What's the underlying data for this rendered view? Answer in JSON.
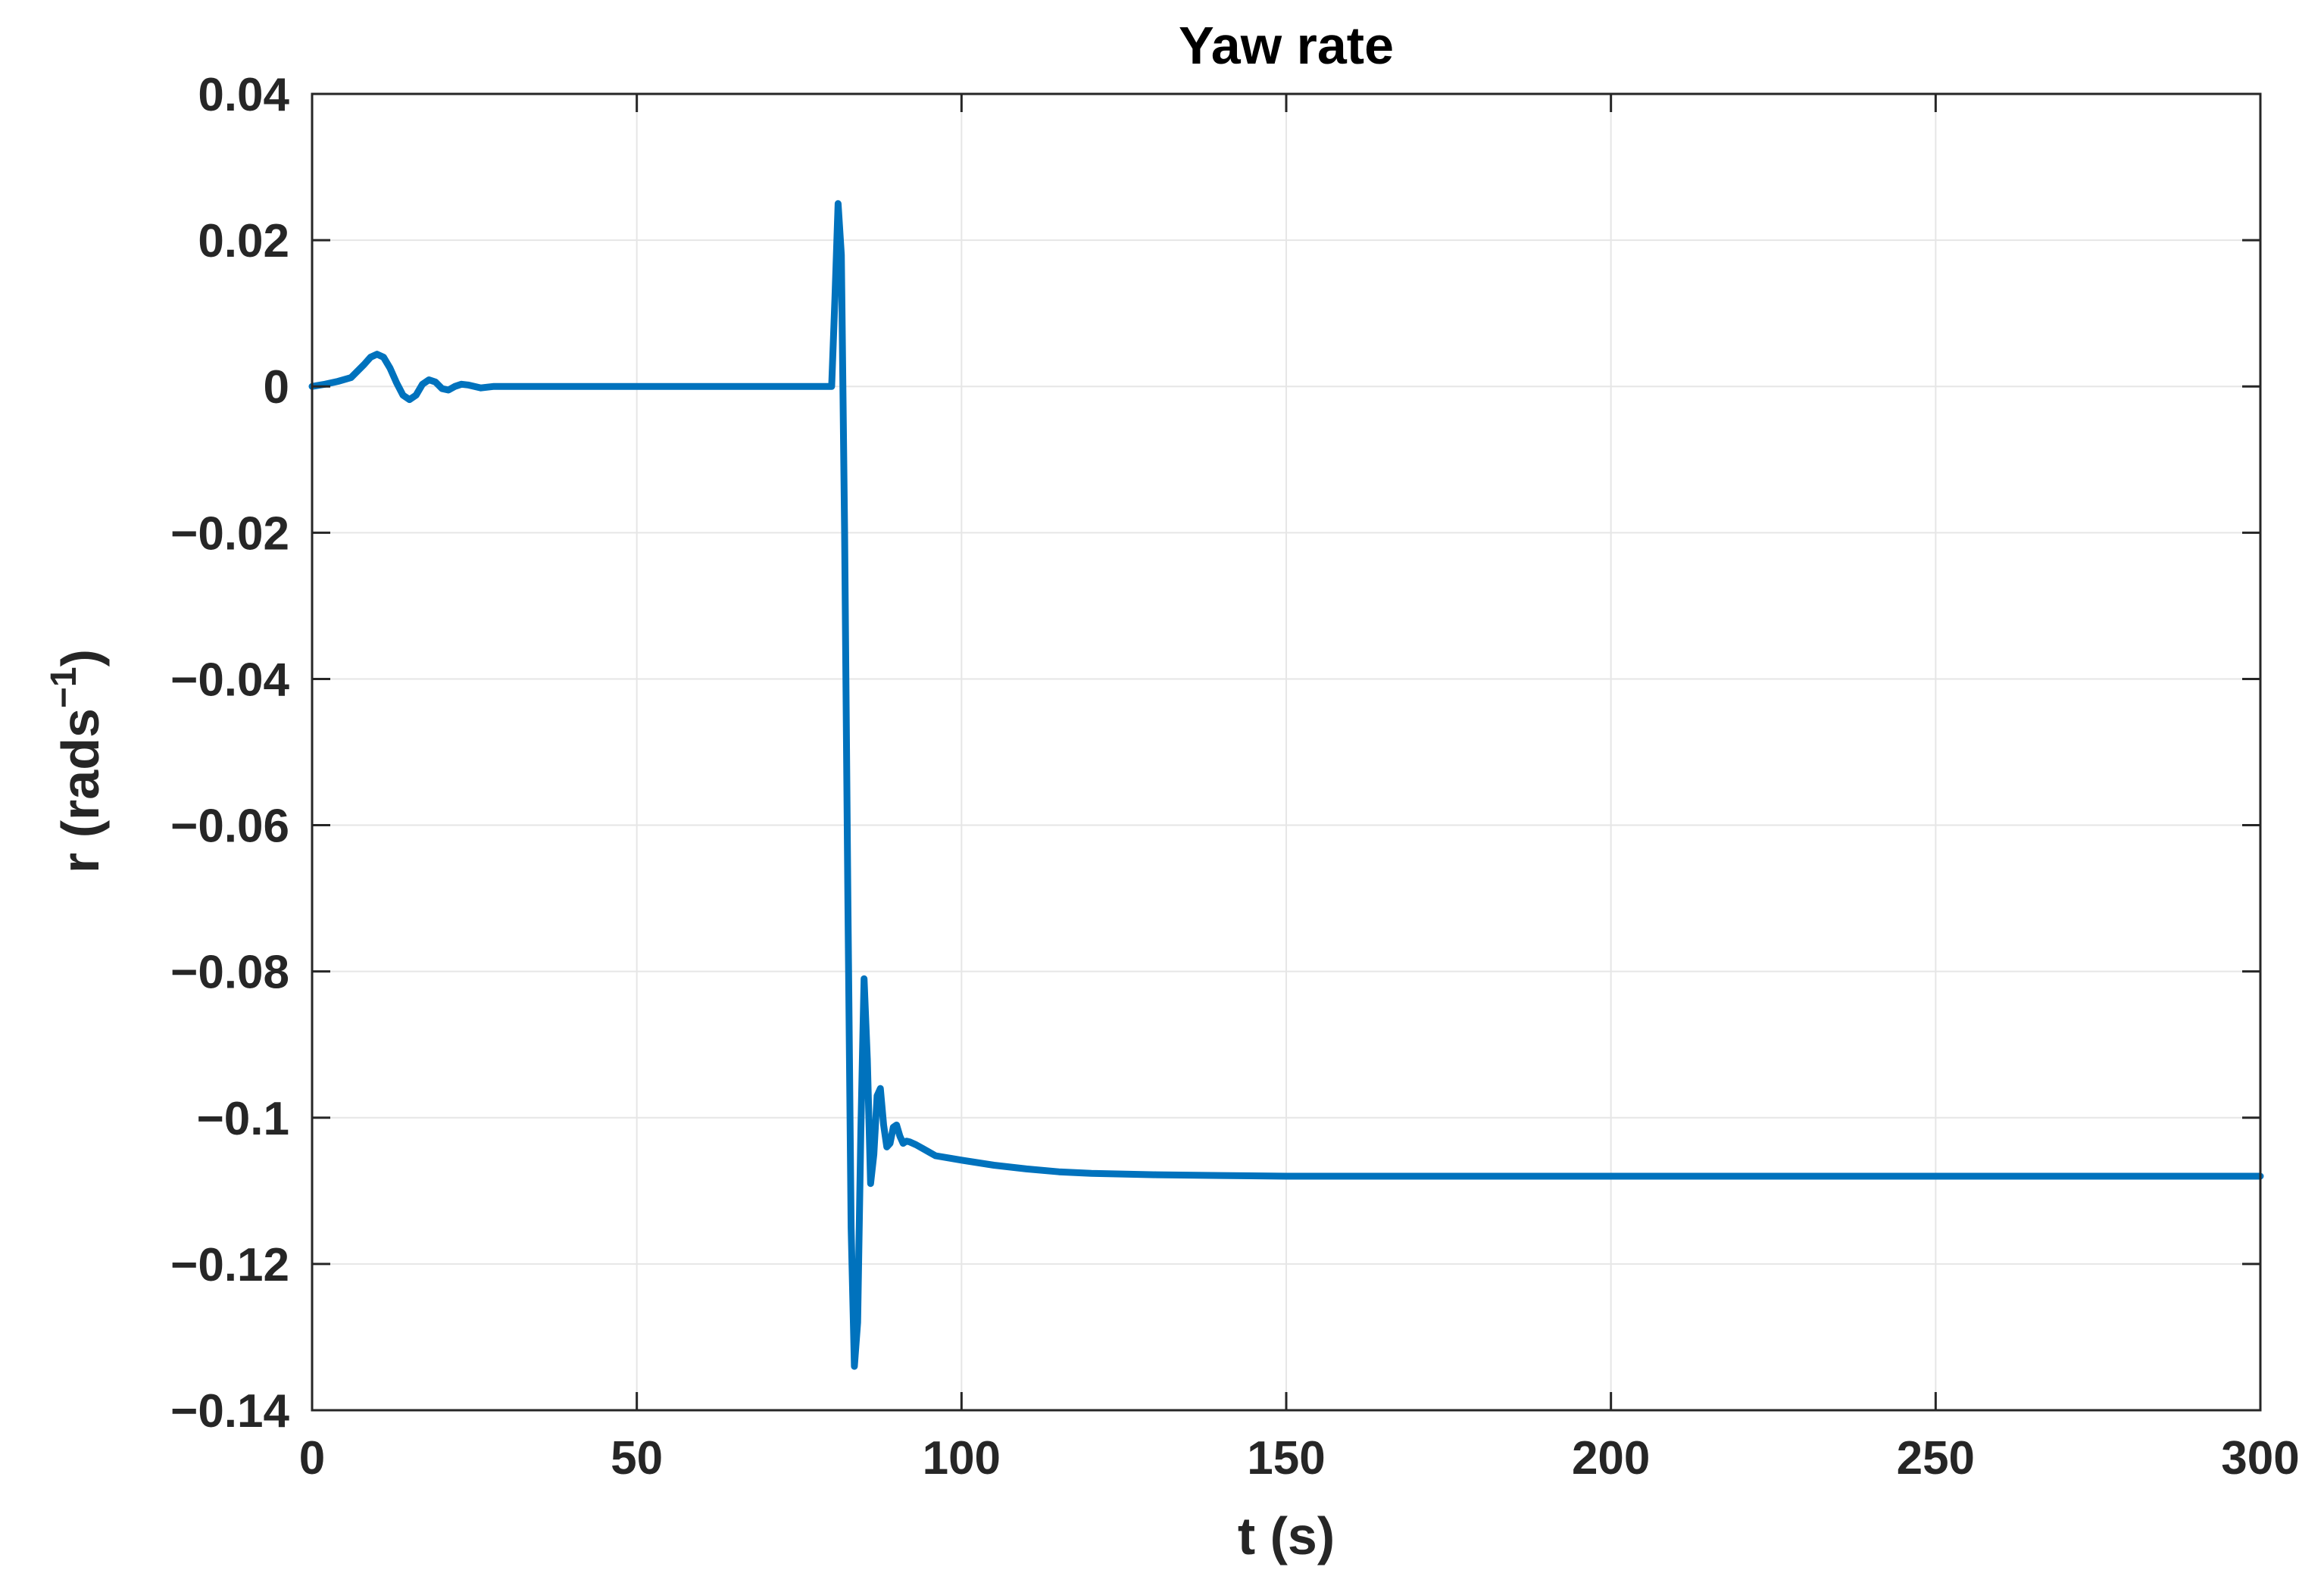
{
  "chart_data": {
    "type": "line",
    "title": "Yaw rate",
    "xlabel": "t (s)",
    "ylabel_main": "r (rads",
    "ylabel_sup": "−1",
    "ylabel_close": ")",
    "xlim": [
      0,
      300
    ],
    "ylim": [
      -0.14,
      0.04
    ],
    "xticks": [
      0,
      50,
      100,
      150,
      200,
      250,
      300
    ],
    "xtick_labels": [
      "0",
      "50",
      "100",
      "150",
      "200",
      "250",
      "300"
    ],
    "yticks": [
      0.04,
      0.02,
      0,
      -0.02,
      -0.04,
      -0.06,
      -0.08,
      -0.1,
      -0.12,
      -0.14
    ],
    "ytick_labels": [
      "0.04",
      "0.02",
      "0",
      "−0.02",
      "−0.04",
      "−0.06",
      "−0.08",
      "−0.1",
      "−0.12",
      "−0.14"
    ],
    "grid": true,
    "line_color": "#0072bd",
    "series": [
      {
        "x": [
          0,
          2,
          4,
          6,
          8,
          9,
          10,
          11,
          12,
          13,
          14,
          15,
          16,
          17,
          18,
          19,
          20,
          21,
          22,
          23,
          24,
          26,
          28,
          30,
          40,
          60,
          78,
          80,
          80.5,
          81,
          81.5,
          82,
          82.5,
          83,
          83.5,
          84,
          84.5,
          85,
          85.5,
          86,
          86.5,
          87,
          87.5,
          88,
          88.5,
          89,
          89.5,
          90,
          90.5,
          91,
          91.5,
          92,
          93,
          94,
          95,
          96,
          100,
          105,
          110,
          115,
          120,
          130,
          140,
          150,
          200,
          250,
          300
        ],
        "y": [
          0,
          0.0003,
          0.0007,
          0.0012,
          0.003,
          0.004,
          0.0044,
          0.004,
          0.0025,
          0.0005,
          -0.0012,
          -0.0018,
          -0.0012,
          0.0003,
          0.0009,
          0.0006,
          -0.0003,
          -0.0005,
          0.0,
          0.0003,
          0.0002,
          -0.0002,
          0.0,
          0.0,
          0.0,
          0.0,
          0.0,
          0.0,
          0.012,
          0.025,
          0.018,
          -0.02,
          -0.07,
          -0.115,
          -0.134,
          -0.128,
          -0.102,
          -0.081,
          -0.092,
          -0.109,
          -0.105,
          -0.097,
          -0.096,
          -0.101,
          -0.104,
          -0.1035,
          -0.1013,
          -0.101,
          -0.1025,
          -0.1035,
          -0.1032,
          -0.1033,
          -0.1037,
          -0.1042,
          -0.1047,
          -0.1052,
          -0.1058,
          -0.1065,
          -0.107,
          -0.1074,
          -0.1076,
          -0.1078,
          -0.1079,
          -0.108,
          -0.108,
          -0.108,
          -0.108
        ]
      }
    ]
  }
}
